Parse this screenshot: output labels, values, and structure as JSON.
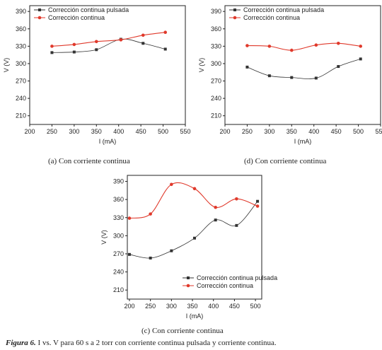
{
  "charts": {
    "a": {
      "caption": "(a) Con corriente continua"
    },
    "d": {
      "caption": "(d) Con corriente continua"
    },
    "c": {
      "caption": "(c) Con corriente continua"
    }
  },
  "figure_caption": {
    "label": "Figura 6.",
    "text": " I vs. V para 60 s a 2 torr con corriente continua pulsada y corriente continua."
  },
  "colors": {
    "pulsada": "#333333",
    "continua": "#e0392b"
  },
  "chart_data": [
    {
      "type": "line",
      "caption": "(a) Con corriente continua",
      "xlabel": "I (mA)",
      "ylabel": "V (V)",
      "xlim": [
        200,
        550
      ],
      "ylim": [
        195,
        400
      ],
      "xticks": [
        200,
        250,
        300,
        350,
        400,
        450,
        500,
        550
      ],
      "yticks": [
        210,
        240,
        270,
        300,
        330,
        360,
        390
      ],
      "legend": "top-left",
      "series": [
        {
          "name": "Corrección continua pulsada",
          "marker": "square",
          "x": [
            250,
            300,
            350,
            405,
            455,
            505
          ],
          "y": [
            319,
            320,
            324,
            342,
            335,
            325
          ]
        },
        {
          "name": "Corrección continua",
          "marker": "circle",
          "x": [
            250,
            300,
            350,
            405,
            455,
            505
          ],
          "y": [
            330,
            333,
            338,
            341,
            349,
            354
          ]
        }
      ]
    },
    {
      "type": "line",
      "caption": "(d) Con corriente continua",
      "xlabel": "I (mA)",
      "ylabel": "V (V)",
      "xlim": [
        200,
        550
      ],
      "ylim": [
        195,
        400
      ],
      "xticks": [
        200,
        250,
        300,
        350,
        400,
        450,
        500,
        550
      ],
      "yticks": [
        210,
        240,
        270,
        300,
        330,
        360,
        390
      ],
      "legend": "top-left",
      "series": [
        {
          "name": "Corrección continua pulsada",
          "marker": "square",
          "x": [
            250,
            300,
            350,
            405,
            455,
            505
          ],
          "y": [
            294,
            279,
            276,
            275,
            295,
            308
          ]
        },
        {
          "name": "Corrección continua",
          "marker": "circle",
          "x": [
            250,
            300,
            350,
            405,
            455,
            505
          ],
          "y": [
            331,
            330,
            323,
            332,
            335,
            330
          ]
        }
      ]
    },
    {
      "type": "line",
      "caption": "(c) Con corriente continua",
      "xlabel": "I (mA)",
      "ylabel": "V (V)",
      "xlim": [
        195,
        515
      ],
      "ylim": [
        195,
        400
      ],
      "xticks": [
        200,
        250,
        300,
        350,
        400,
        450,
        500
      ],
      "yticks": [
        210,
        240,
        270,
        300,
        330,
        360,
        390
      ],
      "legend": "bottom-right",
      "series": [
        {
          "name": "Corrección continua pulsada",
          "marker": "square",
          "x": [
            200,
            250,
            300,
            355,
            405,
            455,
            505
          ],
          "y": [
            269,
            263,
            275,
            296,
            326,
            317,
            357
          ]
        },
        {
          "name": "Corrección continua",
          "marker": "circle",
          "x": [
            200,
            250,
            300,
            355,
            405,
            455,
            505
          ],
          "y": [
            329,
            336,
            385,
            378,
            347,
            361,
            349
          ]
        }
      ]
    }
  ]
}
